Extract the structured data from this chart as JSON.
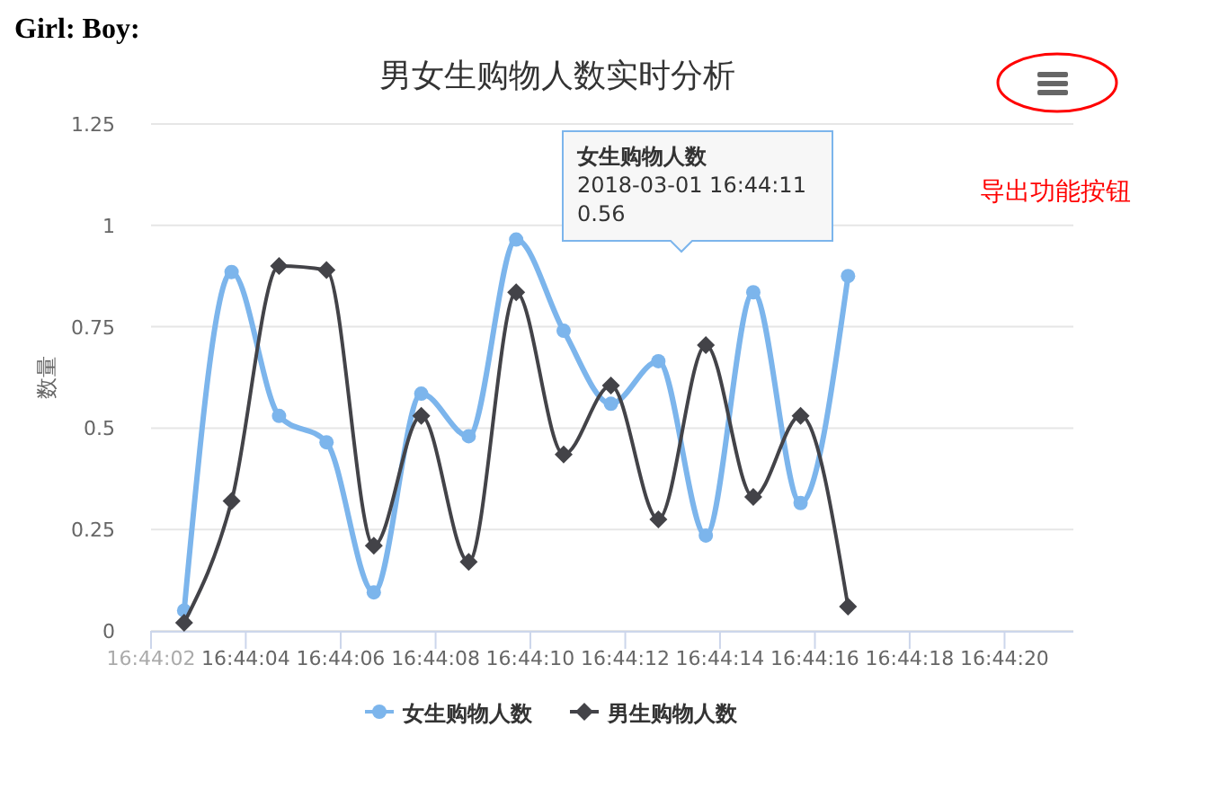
{
  "chart_data": {
    "type": "line",
    "title": "男女生购物人数实时分析",
    "ylabel": "数量",
    "annotations": [
      "Girl: Boy:",
      "导出功能按钮",
      "女生购物人数\n2018-03-01 16:44:11\n0.56"
    ],
    "series": [
      {
        "name": "女生购物人数",
        "color": "#7cb5ec",
        "marker": "circle",
        "x": [
          16.734083,
          16.734361,
          16.734639,
          16.734917,
          16.735194,
          16.735472,
          16.73575,
          16.736028,
          16.736306,
          16.736583,
          16.736861,
          16.737139,
          16.737417,
          16.737694,
          16.737972
        ],
        "values": [
          0.05,
          0.885,
          0.53,
          0.465,
          0.095,
          0.585,
          0.48,
          0.965,
          0.74,
          0.56,
          0.665,
          0.235,
          0.835,
          0.315,
          0.875
        ]
      },
      {
        "name": "男生购物人数",
        "color": "#434348",
        "marker": "diamond",
        "x": [
          16.734083,
          16.734361,
          16.734639,
          16.734917,
          16.735194,
          16.735472,
          16.73575,
          16.736028,
          16.736306,
          16.736583,
          16.736861,
          16.737139,
          16.737417,
          16.737694,
          16.737972
        ],
        "values": [
          0.02,
          0.32,
          0.9,
          0.89,
          0.21,
          0.53,
          0.17,
          0.835,
          0.435,
          0.605,
          0.275,
          0.705,
          0.33,
          0.53,
          0.06
        ]
      }
    ],
    "xlim": [
      16.733889,
      16.739292
    ],
    "xticks": [
      {
        "value": 16.733889,
        "label": "16:44:02"
      },
      {
        "value": 16.734444,
        "label": "16:44:04"
      },
      {
        "value": 16.735,
        "label": "16:44:06"
      },
      {
        "value": 16.735556,
        "label": "16:44:08"
      },
      {
        "value": 16.736111,
        "label": "16:44:10"
      },
      {
        "value": 16.736667,
        "label": "16:44:12"
      },
      {
        "value": 16.737222,
        "label": "16:44:14"
      },
      {
        "value": 16.737778,
        "label": "16:44:16"
      },
      {
        "value": 16.738333,
        "label": "16:44:18"
      },
      {
        "value": 16.738889,
        "label": "16:44:20"
      }
    ],
    "ylim": [
      0,
      1.25
    ],
    "yticks": [
      0,
      0.25,
      0.5,
      0.75,
      1,
      1.25
    ],
    "grid": "y",
    "legend": "bottom",
    "line_style": "solid"
  }
}
